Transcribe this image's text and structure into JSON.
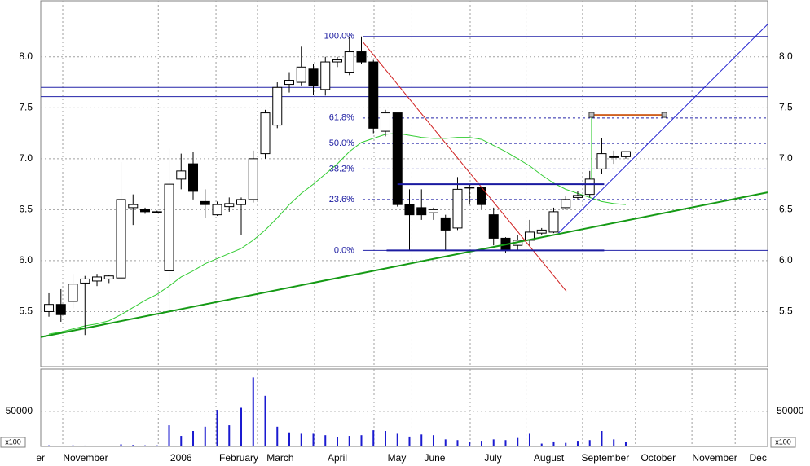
{
  "chart_data": [
    {
      "type": "candlestick",
      "open": [
        5.5,
        5.57,
        5.6,
        5.78,
        5.8,
        5.82,
        5.83,
        6.52,
        6.5,
        6.48,
        5.9,
        6.8,
        6.95,
        6.58,
        6.45,
        6.53,
        6.55,
        6.6,
        7.05,
        7.33,
        7.73,
        7.75,
        7.88,
        7.68,
        7.95,
        7.85,
        8.05,
        7.95,
        7.27,
        7.45,
        6.55,
        6.52,
        6.47,
        6.42,
        6.32,
        6.72,
        6.72,
        6.45,
        6.22,
        6.15,
        6.2,
        6.27,
        6.28,
        6.52,
        6.62,
        6.65,
        6.9,
        7.02,
        7.02
      ],
      "high": [
        5.68,
        5.72,
        5.87,
        5.85,
        5.87,
        5.86,
        6.97,
        6.65,
        6.52,
        6.49,
        7.1,
        7.05,
        7.07,
        6.7,
        6.58,
        6.62,
        6.62,
        7.08,
        7.48,
        7.75,
        7.85,
        8.1,
        7.93,
        8.0,
        8.0,
        8.2,
        8.2,
        7.97,
        7.48,
        7.45,
        6.7,
        6.7,
        6.52,
        6.45,
        6.82,
        6.75,
        6.72,
        6.52,
        6.23,
        6.25,
        6.4,
        6.32,
        6.52,
        6.63,
        6.68,
        6.88,
        7.2,
        7.08,
        7.07
      ],
      "low": [
        5.45,
        5.4,
        5.53,
        5.27,
        5.75,
        5.78,
        5.82,
        6.35,
        6.46,
        6.47,
        5.4,
        6.7,
        6.6,
        6.42,
        6.44,
        6.48,
        6.25,
        6.57,
        7.0,
        7.3,
        7.65,
        7.72,
        7.63,
        7.62,
        7.9,
        7.82,
        7.93,
        7.25,
        7.22,
        6.53,
        6.1,
        6.4,
        6.4,
        6.1,
        6.3,
        6.55,
        6.5,
        6.15,
        6.08,
        6.1,
        6.15,
        6.25,
        6.27,
        6.5,
        6.6,
        6.62,
        6.85,
        6.95,
        7.0
      ],
      "close": [
        5.57,
        5.47,
        5.77,
        5.82,
        5.84,
        5.85,
        6.6,
        6.55,
        6.48,
        6.48,
        6.75,
        6.88,
        6.68,
        6.55,
        6.55,
        6.56,
        6.6,
        7.0,
        7.45,
        7.7,
        7.77,
        7.9,
        7.72,
        7.95,
        7.97,
        8.05,
        7.95,
        7.3,
        7.45,
        6.55,
        6.45,
        6.45,
        6.5,
        6.3,
        6.7,
        6.72,
        6.55,
        6.22,
        6.1,
        6.2,
        6.28,
        6.3,
        6.48,
        6.6,
        6.64,
        6.8,
        7.05,
        7.02,
        7.07
      ],
      "up_color": "#ffffff",
      "down_color": "#000000",
      "moving_average": {
        "color": "#33cc33",
        "values": [
          5.28,
          5.3,
          5.33,
          5.36,
          5.38,
          5.41,
          5.47,
          5.54,
          5.61,
          5.67,
          5.75,
          5.84,
          5.9,
          5.97,
          6.02,
          6.07,
          6.12,
          6.2,
          6.3,
          6.42,
          6.55,
          6.66,
          6.75,
          6.85,
          6.95,
          7.07,
          7.16,
          7.2,
          7.24,
          7.25,
          7.23,
          7.21,
          7.2,
          7.2,
          7.21,
          7.21,
          7.19,
          7.13,
          7.07,
          7.0,
          6.93,
          6.84,
          6.76,
          6.7,
          6.66,
          6.62,
          6.58,
          6.56,
          6.55
        ]
      },
      "xlim": [
        -0.68,
        59.8
      ],
      "xticks": [
        {
          "value": -0.7,
          "label": "er"
        },
        {
          "value": 3.05,
          "label": "November"
        },
        {
          "value": 11.0,
          "label": "2006"
        },
        {
          "value": 15.8,
          "label": "February"
        },
        {
          "value": 19.25,
          "label": "March"
        },
        {
          "value": 24.0,
          "label": "April"
        },
        {
          "value": 28.95,
          "label": "May"
        },
        {
          "value": 32.1,
          "label": "June"
        },
        {
          "value": 36.95,
          "label": "July"
        },
        {
          "value": 41.6,
          "label": "August"
        },
        {
          "value": 46.3,
          "label": "September"
        },
        {
          "value": 50.7,
          "label": "October"
        },
        {
          "value": 55.4,
          "label": "November"
        },
        {
          "value": 59.0,
          "label": "Dec"
        }
      ],
      "ylim": [
        4.96,
        8.55
      ],
      "yticks": [
        5.5,
        {
          "value": 6,
          "label": "6.0"
        },
        6.5,
        {
          "value": 7,
          "label": "7.0"
        },
        7.5,
        {
          "value": 8,
          "label": "8.0"
        }
      ],
      "grid": true,
      "hlines": {
        "color": "#2323a8",
        "values": [
          7.7,
          7.61
        ]
      },
      "fib": {
        "color": "#2323a8",
        "x": [
          26.1,
          59.8
        ],
        "levels": [
          {
            "label": "100.0%",
            "value": 8.2,
            "style": "solid"
          },
          {
            "label": "61.8%",
            "value": 7.4,
            "style": "dashed"
          },
          {
            "label": "50.0%",
            "value": 7.15,
            "style": "dashed"
          },
          {
            "label": "38.2%",
            "value": 6.9,
            "style": "dashed"
          },
          {
            "label": "23.6%",
            "value": 6.6,
            "style": "dashed"
          },
          {
            "label": "0.0%",
            "value": 6.1,
            "style": "solid"
          }
        ]
      },
      "lines": [
        {
          "color": "#159a15",
          "width": 2,
          "points": [
            [
              -0.68,
              5.25
            ],
            [
              59.8,
              6.67
            ]
          ]
        },
        {
          "color": "#2323d0",
          "width": 1,
          "points": [
            [
              42.4,
              6.27
            ],
            [
              59.8,
              8.32
            ]
          ]
        },
        {
          "color": "#d02020",
          "width": 1,
          "points": [
            [
              26.1,
              8.15
            ],
            [
              43.05,
              5.7
            ]
          ]
        },
        {
          "color": "#1a1aa0",
          "width": 2,
          "points": [
            [
              29.0,
              6.75
            ],
            [
              46.2,
              6.75
            ]
          ]
        },
        {
          "color": "#1a1aa0",
          "width": 2,
          "points": [
            [
              28.1,
              6.1
            ],
            [
              46.2,
              6.1
            ]
          ]
        },
        {
          "color": "#d06020",
          "width": 2,
          "points": [
            [
              45.15,
              7.43
            ],
            [
              51.2,
              7.43
            ]
          ]
        },
        {
          "color": "#33cc33",
          "width": 1,
          "points": [
            [
              45.15,
              7.43
            ],
            [
              45.15,
              6.8
            ]
          ]
        }
      ]
    },
    {
      "type": "bar",
      "color": "#1a1ad0",
      "unit": "x100",
      "values": [
        1500,
        1000,
        1500,
        1200,
        1000,
        1000,
        3000,
        2000,
        1500,
        1500,
        30000,
        15000,
        22000,
        28000,
        52000,
        30000,
        55000,
        98000,
        72000,
        28000,
        20000,
        18000,
        18000,
        16000,
        13000,
        15000,
        16000,
        23000,
        22000,
        18000,
        14000,
        17000,
        16000,
        10000,
        9000,
        6000,
        8000,
        10000,
        9000,
        12000,
        18000,
        4000,
        7000,
        5000,
        8000,
        9000,
        22000,
        10000,
        6000
      ],
      "ylim": [
        0,
        110000
      ],
      "yticks": [
        50000
      ]
    }
  ]
}
